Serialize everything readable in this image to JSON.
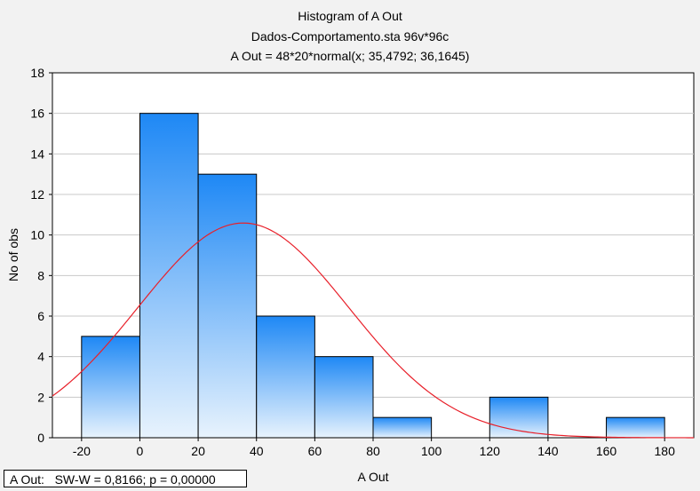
{
  "chart_data": {
    "type": "bar",
    "title": "Histogram of A Out",
    "subtitle_lines": [
      "Dados-Comportamento.sta 96v*96c",
      "A Out = 48*20*normal(x; 35,4792; 36,1645)"
    ],
    "xlabel": "A Out",
    "ylabel": "No of obs",
    "xlim": [
      -30,
      190
    ],
    "ylim": [
      0,
      18
    ],
    "x_ticks": [
      -20,
      0,
      20,
      40,
      60,
      80,
      100,
      120,
      140,
      160,
      180
    ],
    "y_ticks": [
      0,
      2,
      4,
      6,
      8,
      10,
      12,
      14,
      16,
      18
    ],
    "bin_width": 20,
    "bins": [
      {
        "start": -20,
        "end": 0,
        "count": 5
      },
      {
        "start": 0,
        "end": 20,
        "count": 16
      },
      {
        "start": 20,
        "end": 40,
        "count": 13
      },
      {
        "start": 40,
        "end": 60,
        "count": 6
      },
      {
        "start": 60,
        "end": 80,
        "count": 4
      },
      {
        "start": 80,
        "end": 100,
        "count": 1
      },
      {
        "start": 100,
        "end": 120,
        "count": 0
      },
      {
        "start": 120,
        "end": 140,
        "count": 2
      },
      {
        "start": 140,
        "end": 160,
        "count": 0
      },
      {
        "start": 160,
        "end": 180,
        "count": 1
      }
    ],
    "fit_curve": {
      "type": "normal",
      "n": 48,
      "width": 20,
      "mean": 35.4792,
      "sd": 36.1645,
      "color": "#e8202a"
    },
    "grid": true,
    "bar_gradient": {
      "top": "#1e88f5",
      "bottom": "#e8f3fd",
      "edge": "#000000"
    },
    "stats_label": "A Out:   SW-W = 0,8166; p = 0,00000"
  }
}
